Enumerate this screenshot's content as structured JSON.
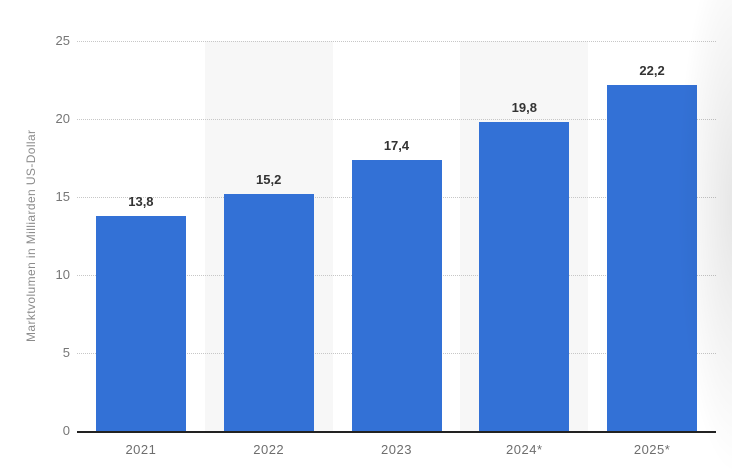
{
  "chart_data": {
    "type": "bar",
    "title": "",
    "categories": [
      "2021",
      "2022",
      "2023",
      "2024*",
      "2025*"
    ],
    "values": [
      13.8,
      15.2,
      17.4,
      19.8,
      22.2
    ],
    "value_labels": [
      "13,8",
      "15,2",
      "17,4",
      "19,8",
      "22,2"
    ],
    "xlabel": "",
    "ylabel": "Marktvolumen in Milliarden US-Dollar",
    "ylim": [
      0,
      25
    ],
    "yticks": [
      0,
      5,
      10,
      15,
      20,
      25
    ],
    "ytick_labels": [
      "0",
      "5",
      "10",
      "15",
      "20",
      "25"
    ],
    "grid": "horizontal-dotted",
    "legend": "none",
    "striped_category_indices": [
      1,
      3
    ],
    "colors": {
      "bar": "#3371d6",
      "stripe": "#f7f7f7",
      "grid": "#c7c7c7",
      "axis_line": "#222222",
      "tick_text": "#767676",
      "data_label": "#333333",
      "background": "#ffffff"
    }
  }
}
